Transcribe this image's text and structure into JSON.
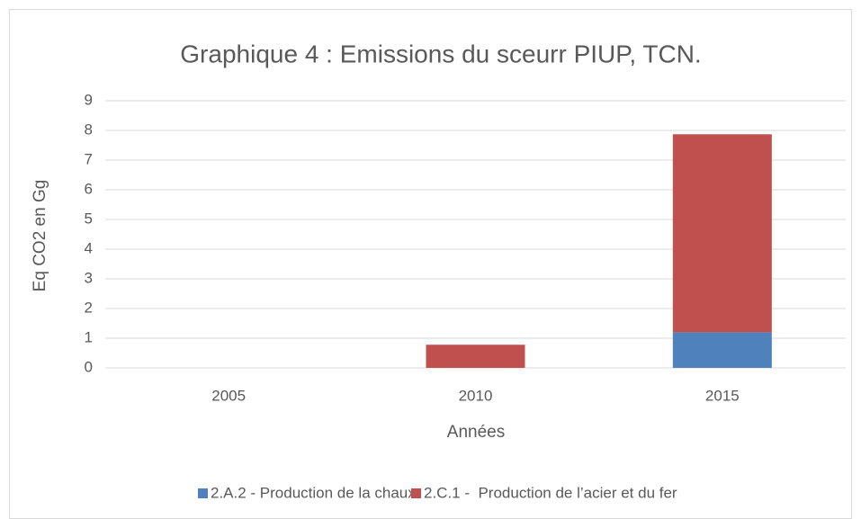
{
  "chart_data": {
    "type": "bar",
    "stacked": true,
    "title": "Graphique 4 : Emissions du sceurr PIUP, TCN.",
    "x_label": "Années",
    "y_label": "Eq CO2 en Gg",
    "categories": [
      "2005",
      "2010",
      "2015"
    ],
    "series": [
      {
        "name": "2.A.2 - Production de la chaux",
        "color": "#4f81bd",
        "values": [
          0,
          0,
          1.2
        ]
      },
      {
        "name": "2.C.1 -  Production de l’acier et du fer",
        "color": "#c0504d",
        "values": [
          0,
          0.78,
          6.67
        ]
      }
    ],
    "ylim": [
      0,
      9
    ],
    "yticks": [
      0,
      1,
      2,
      3,
      4,
      5,
      6,
      7,
      8,
      9
    ],
    "grid": true,
    "legend": "bottom"
  }
}
